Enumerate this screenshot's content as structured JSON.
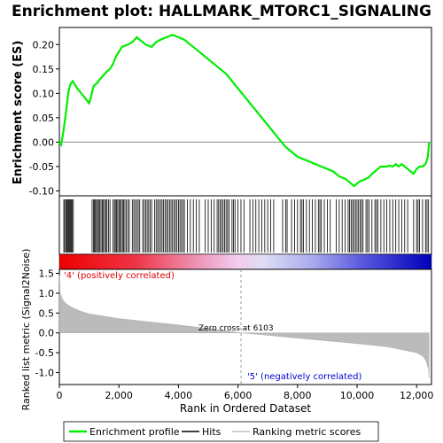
{
  "chart_data": {
    "type": "line",
    "title": "Enrichment plot: HALLMARK_MTORC1_SIGNALING",
    "xlabel": "Rank in Ordered Dataset",
    "xlim": [
      0,
      12500
    ],
    "x_ticks": [
      0,
      2000,
      4000,
      6000,
      8000,
      10000,
      12000
    ],
    "x_tick_labels": [
      "0",
      "2,000",
      "4,000",
      "6,000",
      "8,000",
      "10,000",
      "12,000"
    ],
    "es_panel": {
      "ylabel": "Enrichment score (ES)",
      "ylim": [
        -0.11,
        0.235
      ],
      "y_ticks": [
        -0.1,
        -0.05,
        0.0,
        0.05,
        0.1,
        0.15,
        0.2
      ],
      "y_tick_labels": [
        "-0.10",
        "-0.05",
        "0.00",
        "0.05",
        "0.10",
        "0.15",
        "0.20"
      ],
      "series": [
        {
          "name": "Enrichment profile",
          "color": "#00ee00",
          "x": [
            0,
            60,
            130,
            200,
            260,
            310,
            380,
            450,
            600,
            800,
            1000,
            1050,
            1150,
            1250,
            1350,
            1450,
            1600,
            1700,
            1800,
            1900,
            2000,
            2100,
            2300,
            2450,
            2600,
            2700,
            2900,
            3100,
            3250,
            3400,
            3600,
            3800,
            4000,
            4200,
            4400,
            4600,
            4800,
            5000,
            5200,
            5400,
            5600,
            5800,
            6000,
            6200,
            6400,
            6600,
            6800,
            7000,
            7200,
            7400,
            7600,
            7800,
            8000,
            8200,
            8400,
            8600,
            8800,
            9000,
            9200,
            9400,
            9600,
            9800,
            9900,
            10000,
            10100,
            10200,
            10400,
            10500,
            10600,
            10700,
            10800,
            11000,
            11100,
            11200,
            11300,
            11400,
            11500,
            11600,
            11700,
            11800,
            11900,
            12000,
            12100,
            12200,
            12300,
            12380,
            12420
          ],
          "y": [
            0.0,
            -0.005,
            0.02,
            0.05,
            0.08,
            0.105,
            0.12,
            0.125,
            0.11,
            0.095,
            0.08,
            0.09,
            0.115,
            0.12,
            0.128,
            0.135,
            0.145,
            0.15,
            0.16,
            0.175,
            0.185,
            0.195,
            0.2,
            0.205,
            0.215,
            0.21,
            0.2,
            0.195,
            0.205,
            0.21,
            0.215,
            0.22,
            0.215,
            0.21,
            0.2,
            0.19,
            0.18,
            0.17,
            0.16,
            0.15,
            0.14,
            0.125,
            0.11,
            0.095,
            0.08,
            0.065,
            0.05,
            0.035,
            0.02,
            0.005,
            -0.01,
            -0.02,
            -0.03,
            -0.035,
            -0.04,
            -0.045,
            -0.05,
            -0.055,
            -0.06,
            -0.07,
            -0.075,
            -0.085,
            -0.09,
            -0.085,
            -0.08,
            -0.078,
            -0.072,
            -0.065,
            -0.06,
            -0.055,
            -0.05,
            -0.05,
            -0.048,
            -0.05,
            -0.045,
            -0.05,
            -0.045,
            -0.05,
            -0.055,
            -0.06,
            -0.065,
            -0.055,
            -0.05,
            -0.05,
            -0.045,
            -0.03,
            0.0
          ]
        }
      ]
    },
    "hits_panel": {
      "legend_label": "Hits",
      "hit_positions": [
        150,
        180,
        220,
        250,
        280,
        310,
        340,
        370,
        400,
        430,
        470,
        1100,
        1150,
        1180,
        1210,
        1250,
        1280,
        1320,
        1360,
        1400,
        1440,
        1480,
        1520,
        1560,
        1600,
        1650,
        1700,
        1800,
        1850,
        1880,
        1920,
        1960,
        2000,
        2040,
        2080,
        2120,
        2160,
        2200,
        2250,
        2300,
        2350,
        2450,
        2500,
        2550,
        2600,
        2650,
        2700,
        2800,
        2850,
        2900,
        2950,
        3000,
        3050,
        3100,
        3200,
        3250,
        3300,
        3350,
        3400,
        3450,
        3500,
        3550,
        3600,
        3650,
        3700,
        3750,
        3800,
        3850,
        3900,
        3950,
        4000,
        4050,
        4100,
        4150,
        4200,
        4300,
        4400,
        4500,
        4600,
        4700,
        4900,
        5000,
        5100,
        5200,
        5300,
        5350,
        5400,
        5450,
        5500,
        5550,
        5600,
        5650,
        5700,
        5800,
        5850,
        5900,
        6000,
        6100,
        6200,
        6400,
        6500,
        6600,
        6700,
        6800,
        6900,
        7000,
        7100,
        7200,
        7500,
        7600,
        7650,
        7800,
        7900,
        8000,
        8100,
        8150,
        8200,
        8300,
        8400,
        8500,
        8600,
        8700,
        8750,
        8800,
        8900,
        9000,
        9100,
        9300,
        9400,
        9500,
        9600,
        9700,
        9750,
        9800,
        9850,
        9900,
        9950,
        10000,
        10050,
        10100,
        10150,
        10200,
        10300,
        10350,
        10400,
        10500,
        10600,
        10650,
        10700,
        10800,
        10900,
        11000,
        11100,
        11200,
        11300,
        11400,
        11500,
        11600,
        11700,
        11900,
        12000,
        12050,
        12100,
        12200,
        12300,
        12350,
        12400
      ]
    },
    "ranked_list_panel": {
      "ylabel": "Ranked list metric (Signal2Noise)",
      "legend_label": "Ranking metric scores",
      "ylim": [
        -1.3,
        1.6
      ],
      "y_ticks": [
        -1.0,
        -0.5,
        0.0,
        0.5,
        1.0,
        1.5
      ],
      "y_tick_labels": [
        "-1.0",
        "-0.5",
        "0.0",
        "0.5",
        "1.0",
        "1.5"
      ],
      "x": [
        0,
        30,
        100,
        200,
        400,
        700,
        1000,
        1500,
        2000,
        3000,
        4000,
        5000,
        6103,
        7000,
        8000,
        9000,
        10000,
        11000,
        11500,
        12000,
        12200,
        12300,
        12400,
        12420
      ],
      "values": [
        1.45,
        1.0,
        0.85,
        0.75,
        0.65,
        0.55,
        0.48,
        0.42,
        0.36,
        0.28,
        0.2,
        0.11,
        0.0,
        -0.06,
        -0.13,
        -0.2,
        -0.27,
        -0.35,
        -0.42,
        -0.5,
        -0.58,
        -0.68,
        -0.9,
        -1.15
      ],
      "positive_label": "'4' (positively correlated)",
      "negative_label": "'5' (negatively correlated)",
      "zero_cross_label": "Zero cross at 6103",
      "zero_cross_rank": 6103
    },
    "legend": {
      "placement": "bottom",
      "items": [
        {
          "label": "Enrichment profile",
          "color": "#00ee00"
        },
        {
          "label": "Hits",
          "color": "#000000"
        },
        {
          "label": "Ranking metric scores",
          "color": "#c0c0c0"
        }
      ]
    },
    "colors": {
      "positive_text": "#dd0000",
      "negative_text": "#0000cc",
      "metric_fill": "#bbbbbb",
      "heat_positive": "#ee0000",
      "heat_negative": "#0000cc"
    }
  }
}
